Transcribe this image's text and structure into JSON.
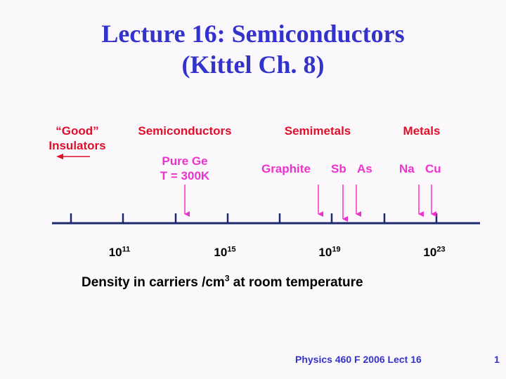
{
  "title": {
    "line1": "Lecture 16:  Semiconductors",
    "line2": "(Kittel Ch. 8)"
  },
  "categories": {
    "good_insulators_line1": "“Good”",
    "good_insulators_line2": "Insulators",
    "semiconductors": "Semiconductors",
    "semimetals": "Semimetals",
    "metals": "Metals"
  },
  "examples": {
    "pure_ge_line1": "Pure Ge",
    "pure_ge_line2": "T = 300K",
    "graphite": "Graphite",
    "sb": "Sb",
    "as": "As",
    "na": "Na",
    "cu": "Cu"
  },
  "axis": {
    "ticks": [
      {
        "base": "10",
        "exp": "11"
      },
      {
        "base": "10",
        "exp": "15"
      },
      {
        "base": "10",
        "exp": "19"
      },
      {
        "base": "10",
        "exp": "23"
      }
    ],
    "caption_before": "Density in carriers /cm",
    "caption_sup": "3",
    "caption_after": " at room temperature"
  },
  "footer": {
    "course": "Physics 460 F 2006  Lect 16",
    "page": "1"
  },
  "colors": {
    "title": "#3333cc",
    "category": "#e0102a",
    "example": "#ee33cc",
    "axis": "#1a2a6c"
  }
}
